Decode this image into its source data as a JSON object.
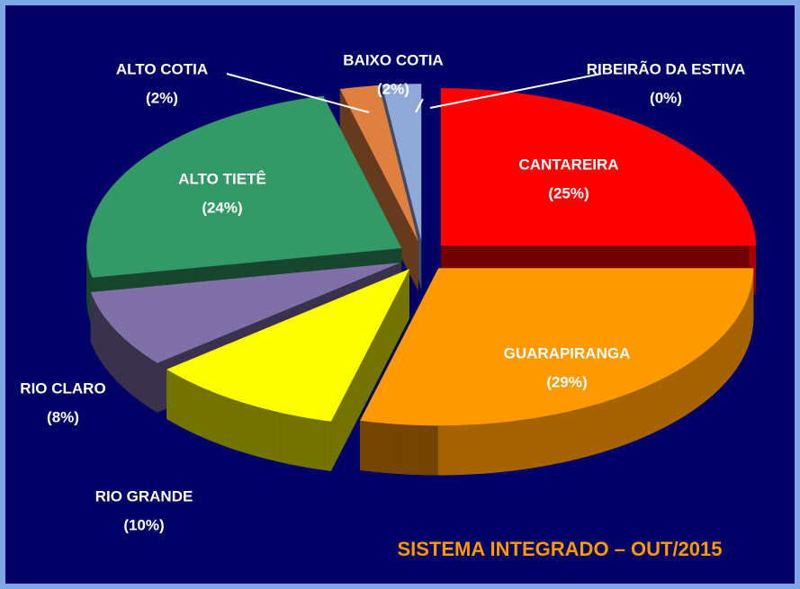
{
  "chart_data": {
    "type": "pie",
    "title": "SISTEMA INTEGRADO – OUT/2015",
    "categories": [
      "CANTAREIRA",
      "GUARAPIRANGA",
      "RIO GRANDE",
      "RIO CLARO",
      "ALTO TIETÊ",
      "ALTO COTIA",
      "BAIXO COTIA",
      "RIBEIRÃO DA ESTIVA"
    ],
    "values": [
      25,
      29,
      10,
      8,
      24,
      2,
      2,
      0
    ],
    "value_labels": [
      "(25%)",
      "(29%)",
      "(10%)",
      "(8%)",
      "(24%)",
      "(2%)",
      "(2%)",
      "(0%)"
    ],
    "colors": [
      "#ff0000",
      "#ff9900",
      "#ffff00",
      "#8070a8",
      "#339966",
      "#e08040",
      "#8faad8",
      "#f4a0a0"
    ]
  }
}
